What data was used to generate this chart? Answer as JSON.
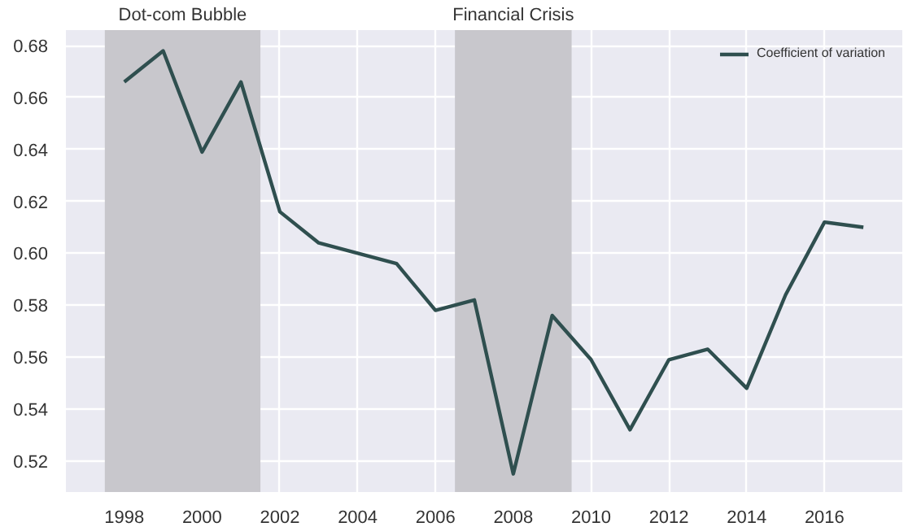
{
  "chart_data": {
    "type": "line",
    "x": [
      1998,
      1999,
      2000,
      2001,
      2002,
      2003,
      2004,
      2005,
      2006,
      2007,
      2008,
      2009,
      2010,
      2011,
      2012,
      2013,
      2014,
      2015,
      2016,
      2017
    ],
    "series": [
      {
        "name": "Coefficient of variation",
        "color": "#2f4f4f",
        "values": [
          0.666,
          0.678,
          0.639,
          0.666,
          0.616,
          0.604,
          0.6,
          0.596,
          0.578,
          0.582,
          0.515,
          0.576,
          0.559,
          0.532,
          0.559,
          0.563,
          0.548,
          0.584,
          0.612,
          0.61
        ]
      }
    ],
    "xlim": [
      1996.5,
      2018
    ],
    "ylim": [
      0.508,
      0.686
    ],
    "xticks": [
      1998,
      2000,
      2002,
      2004,
      2006,
      2008,
      2010,
      2012,
      2014,
      2016
    ],
    "yticks": [
      {
        "value": 0.52,
        "label": "0.52"
      },
      {
        "value": 0.54,
        "label": "0.54"
      },
      {
        "value": 0.56,
        "label": "0.56"
      },
      {
        "value": 0.58,
        "label": "0.58"
      },
      {
        "value": 0.6,
        "label": "0.60"
      },
      {
        "value": 0.62,
        "label": "0.62"
      },
      {
        "value": 0.64,
        "label": "0.64"
      },
      {
        "value": 0.66,
        "label": "0.66"
      },
      {
        "value": 0.68,
        "label": "0.68"
      }
    ],
    "bands": [
      {
        "axis": "x",
        "from": 1997.5,
        "to": 2001.5,
        "label": "Dot-com Bubble",
        "color": "#c8c7cc"
      },
      {
        "axis": "x",
        "from": 2006.5,
        "to": 2009.5,
        "label": "Financial Crisis",
        "color": "#c8c7cc"
      }
    ],
    "grid": true,
    "legend": "top right",
    "marker": "none",
    "line_style": "solid"
  }
}
